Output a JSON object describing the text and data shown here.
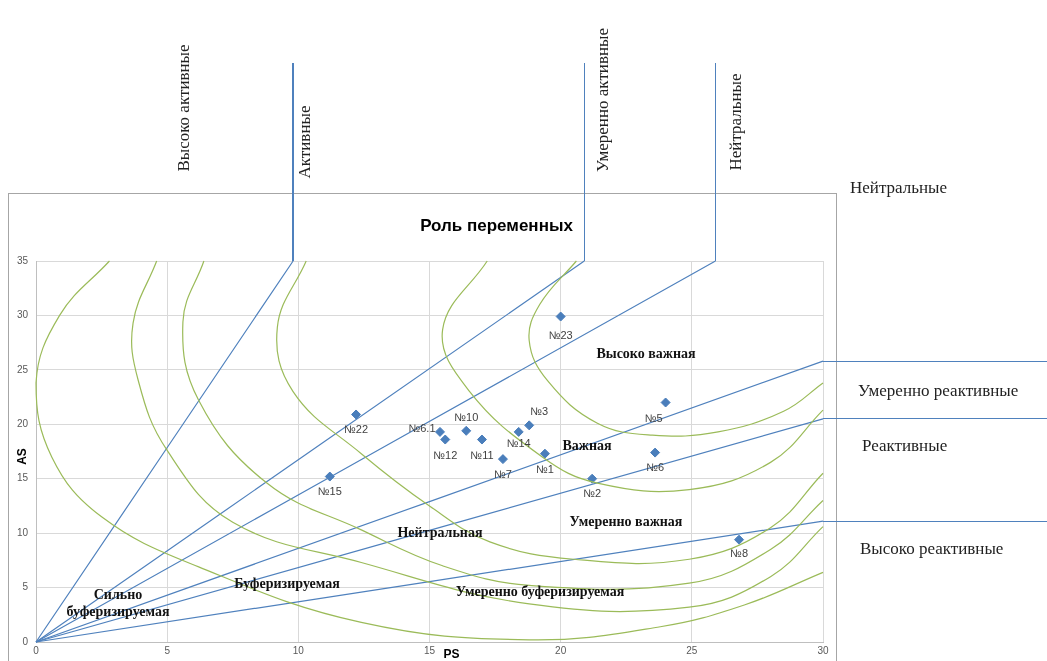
{
  "chart_data": {
    "type": "scatter",
    "title": "Роль переменных",
    "xlabel": "PS",
    "ylabel": "AS",
    "xlim": [
      0,
      30
    ],
    "ylim": [
      0,
      35
    ],
    "xticks": [
      0,
      5,
      10,
      15,
      20,
      25,
      30
    ],
    "yticks": [
      0,
      5,
      10,
      15,
      20,
      25,
      30,
      35
    ],
    "grid": true,
    "legend": false,
    "series": [
      {
        "type": "line",
        "color": "#9bbb59",
        "x": [
          2.8,
          0.9,
          0,
          0.6,
          2.5,
          6.2,
          12.4,
          18.8,
          23.8,
          27,
          30
        ],
        "values": [
          35,
          30,
          23.8,
          17,
          11.5,
          6.9,
          1.8,
          0.2,
          1.4,
          3.4,
          6.4
        ]
      },
      {
        "type": "line",
        "color": "#9bbb59",
        "x": [
          4.6,
          3.7,
          3.9,
          5,
          7.5,
          12.4,
          18.8,
          24.9,
          28,
          30
        ],
        "values": [
          35,
          29.3,
          24,
          17.6,
          11,
          7.3,
          3.5,
          3.2,
          6,
          10.6
        ]
      },
      {
        "type": "line",
        "color": "#9bbb59",
        "x": [
          6.4,
          5.6,
          6.2,
          8.8,
          12.4,
          15.5,
          18.8,
          24.9,
          28,
          30
        ],
        "values": [
          35,
          29.4,
          22.2,
          14.6,
          10.3,
          7,
          5.2,
          5.4,
          8.5,
          13
        ]
      },
      {
        "type": "line",
        "color": "#9bbb59",
        "x": [
          10.3,
          9.2,
          9.8,
          12.4,
          15,
          17.3,
          20.5,
          24.9,
          28,
          30
        ],
        "values": [
          35,
          28.9,
          23,
          17.3,
          12.5,
          9.2,
          7.6,
          7.6,
          10.5,
          15.5
        ]
      },
      {
        "type": "line",
        "color": "#9bbb59",
        "x": [
          17.2,
          15.5,
          16.5,
          19.3,
          21.4,
          24.9,
          28,
          30
        ],
        "values": [
          35,
          28.7,
          23.1,
          17,
          14.6,
          14,
          16.5,
          21.3
        ]
      },
      {
        "type": "line",
        "color": "#9bbb59",
        "x": [
          20.6,
          19.2,
          18.8,
          19.5,
          21.4,
          23.5,
          26,
          28.5,
          30
        ],
        "values": [
          35,
          31,
          27.7,
          24,
          20.1,
          19,
          19.3,
          21.2,
          23.8
        ]
      },
      {
        "type": "line",
        "color": "#4f81bd",
        "x": [
          0,
          9.8
        ],
        "values": [
          0,
          35
        ]
      },
      {
        "type": "line",
        "color": "#4f81bd",
        "x": [
          0,
          20.9
        ],
        "values": [
          0,
          35
        ]
      },
      {
        "type": "line",
        "color": "#4f81bd",
        "x": [
          0,
          25.9
        ],
        "values": [
          0,
          35
        ]
      },
      {
        "type": "line",
        "color": "#4f81bd",
        "x": [
          0,
          30
        ],
        "values": [
          0,
          25.8
        ]
      },
      {
        "type": "line",
        "color": "#4f81bd",
        "x": [
          0,
          30
        ],
        "values": [
          0,
          20.5
        ]
      },
      {
        "type": "line",
        "color": "#4f81bd",
        "x": [
          0,
          30
        ],
        "values": [
          0,
          11.1
        ]
      },
      {
        "name": "№23",
        "color": "#4a7ebb",
        "marker": "diamond",
        "x": [
          20
        ],
        "values": [
          29.9
        ]
      },
      {
        "name": "№22",
        "color": "#4a7ebb",
        "marker": "diamond",
        "x": [
          12.2
        ],
        "values": [
          20.9
        ]
      },
      {
        "name": "№15",
        "color": "#4a7ebb",
        "marker": "diamond",
        "x": [
          11.2
        ],
        "values": [
          15.2
        ]
      },
      {
        "name": "№6.1",
        "color": "#4a7ebb",
        "marker": "diamond",
        "x": [
          15.4
        ],
        "values": [
          19.3
        ]
      },
      {
        "name": "№12",
        "color": "#4a7ebb",
        "marker": "diamond",
        "x": [
          15.6
        ],
        "values": [
          18.6
        ]
      },
      {
        "name": "№10",
        "color": "#4a7ebb",
        "marker": "diamond",
        "x": [
          16.4
        ],
        "values": [
          19.4
        ]
      },
      {
        "name": "№11",
        "color": "#4a7ebb",
        "marker": "diamond",
        "x": [
          17
        ],
        "values": [
          18.6
        ]
      },
      {
        "name": "№7",
        "color": "#4a7ebb",
        "marker": "diamond",
        "x": [
          17.8
        ],
        "values": [
          16.8
        ]
      },
      {
        "name": "№14",
        "color": "#4a7ebb",
        "marker": "diamond",
        "x": [
          18.4
        ],
        "values": [
          19.3
        ]
      },
      {
        "name": "№3",
        "color": "#4a7ebb",
        "marker": "diamond",
        "x": [
          18.8
        ],
        "values": [
          19.9
        ]
      },
      {
        "name": "№1",
        "color": "#4a7ebb",
        "marker": "diamond",
        "x": [
          19.4
        ],
        "values": [
          17.3
        ]
      },
      {
        "name": "№2",
        "color": "#4a7ebb",
        "marker": "diamond",
        "x": [
          21.2
        ],
        "values": [
          15
        ]
      },
      {
        "name": "№5",
        "color": "#4a7ebb",
        "marker": "diamond",
        "x": [
          24
        ],
        "values": [
          22
        ]
      },
      {
        "name": "№6",
        "color": "#4a7ebb",
        "marker": "diamond",
        "x": [
          23.6
        ],
        "values": [
          17.4
        ]
      },
      {
        "name": "№8",
        "color": "#4a7ebb",
        "marker": "diamond",
        "x": [
          26.8
        ],
        "values": [
          9.4
        ]
      }
    ],
    "annotations": [
      "Высоко важная",
      "Важная",
      "Умеренно важная",
      "Нейтральная",
      "Буферизируемая",
      "Умеренно буферизируемая",
      "Сильно\nбуферизируемая",
      "Высоко активные",
      "Активные",
      "Умеренно активные",
      "Нейтральные",
      "Нейтральные",
      "Умеренно реактивные",
      "Реактивные",
      "Высоко реактивные"
    ]
  }
}
